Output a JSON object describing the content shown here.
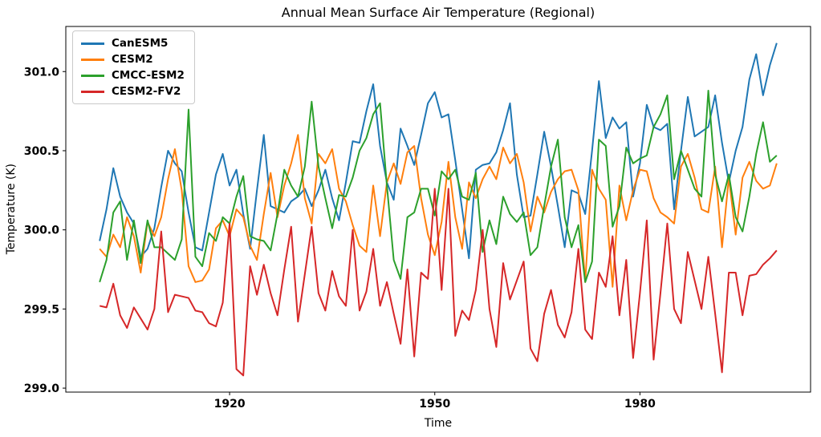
{
  "chart_data": {
    "type": "line",
    "title": "Annual Mean Surface Air Temperature (Regional)",
    "xlabel": "Time",
    "ylabel": "Temperature (K)",
    "xlim": [
      1896.05,
      2004.95
    ],
    "ylim": [
      298.975,
      301.285
    ],
    "xticks": [
      1920,
      1950,
      1980
    ],
    "yticks": [
      299.0,
      299.5,
      300.0,
      300.5,
      301.0
    ],
    "grid": false,
    "legend_position": "upper-left",
    "line_width": 2,
    "x": [
      1901,
      1902,
      1903,
      1904,
      1905,
      1906,
      1907,
      1908,
      1909,
      1910,
      1911,
      1912,
      1913,
      1914,
      1915,
      1916,
      1917,
      1918,
      1919,
      1920,
      1921,
      1922,
      1923,
      1924,
      1925,
      1926,
      1927,
      1928,
      1929,
      1930,
      1931,
      1932,
      1933,
      1934,
      1935,
      1936,
      1937,
      1938,
      1939,
      1940,
      1941,
      1942,
      1943,
      1944,
      1945,
      1946,
      1947,
      1948,
      1949,
      1950,
      1951,
      1952,
      1953,
      1954,
      1955,
      1956,
      1957,
      1958,
      1959,
      1960,
      1961,
      1962,
      1963,
      1964,
      1965,
      1966,
      1967,
      1968,
      1969,
      1970,
      1971,
      1972,
      1973,
      1974,
      1975,
      1976,
      1977,
      1978,
      1979,
      1980,
      1981,
      1982,
      1983,
      1984,
      1985,
      1986,
      1987,
      1988,
      1989,
      1990,
      1991,
      1992,
      1993,
      1994,
      1995,
      1996,
      1997,
      1998,
      1999,
      2000
    ],
    "series": [
      {
        "name": "CanESM5",
        "color": "#1f77b4",
        "values": [
          299.93,
          300.13,
          300.39,
          300.21,
          300.11,
          300.04,
          299.83,
          299.88,
          300.01,
          300.27,
          300.5,
          300.42,
          300.37,
          300.11,
          299.89,
          299.87,
          300.11,
          300.35,
          300.48,
          300.28,
          300.38,
          300.1,
          299.88,
          300.25,
          300.6,
          300.15,
          300.13,
          300.11,
          300.18,
          300.21,
          300.26,
          300.15,
          300.25,
          300.38,
          300.2,
          300.06,
          300.3,
          300.56,
          300.55,
          300.75,
          300.92,
          300.53,
          300.3,
          300.19,
          300.64,
          300.53,
          300.41,
          300.6,
          300.8,
          300.87,
          300.71,
          300.73,
          300.44,
          300.13,
          299.82,
          300.38,
          300.41,
          300.42,
          300.49,
          300.63,
          300.8,
          300.35,
          300.08,
          300.09,
          300.35,
          300.62,
          300.4,
          300.15,
          299.89,
          300.25,
          300.23,
          300.1,
          300.5,
          300.94,
          300.58,
          300.71,
          300.64,
          300.68,
          300.21,
          300.42,
          300.79,
          300.65,
          300.63,
          300.67,
          300.13,
          300.5,
          300.84,
          300.59,
          300.62,
          300.65,
          300.85,
          300.55,
          300.3,
          300.5,
          300.65,
          300.95,
          301.11,
          300.85,
          301.04,
          301.18
        ]
      },
      {
        "name": "CESM2",
        "color": "#ff7f0e",
        "values": [
          299.88,
          299.83,
          299.97,
          299.89,
          300.08,
          299.96,
          299.73,
          300.05,
          299.96,
          300.08,
          300.32,
          300.51,
          300.25,
          299.77,
          299.67,
          299.68,
          299.75,
          300.01,
          300.06,
          299.96,
          300.13,
          300.08,
          299.9,
          299.81,
          300.1,
          300.36,
          300.08,
          300.28,
          300.42,
          300.6,
          300.2,
          300.04,
          300.48,
          300.42,
          300.51,
          300.26,
          300.18,
          300.03,
          299.9,
          299.86,
          300.28,
          299.96,
          300.3,
          300.42,
          300.29,
          300.49,
          300.53,
          300.2,
          299.97,
          299.84,
          300.05,
          300.43,
          300.08,
          299.88,
          300.3,
          300.2,
          300.32,
          300.4,
          300.32,
          300.52,
          300.42,
          300.48,
          300.3,
          299.99,
          300.21,
          300.11,
          300.24,
          300.32,
          300.37,
          300.38,
          300.25,
          299.67,
          300.38,
          300.26,
          300.19,
          299.64,
          300.28,
          300.06,
          300.25,
          300.38,
          300.37,
          300.2,
          300.11,
          300.08,
          300.04,
          300.4,
          300.48,
          300.33,
          300.13,
          300.11,
          300.4,
          299.89,
          300.33,
          299.97,
          300.33,
          300.43,
          300.31,
          300.26,
          300.28,
          300.42
        ]
      },
      {
        "name": "CMCC-ESM2",
        "color": "#2ca02c",
        "values": [
          299.67,
          299.81,
          300.11,
          300.18,
          299.81,
          300.06,
          299.79,
          300.06,
          299.89,
          299.89,
          299.85,
          299.81,
          299.94,
          300.76,
          299.83,
          299.77,
          299.98,
          299.93,
          300.08,
          300.04,
          300.21,
          300.34,
          299.96,
          299.94,
          299.93,
          299.87,
          300.1,
          300.38,
          300.28,
          300.21,
          300.4,
          300.81,
          300.4,
          300.2,
          300.01,
          300.22,
          300.21,
          300.33,
          300.5,
          300.58,
          300.73,
          300.8,
          300.28,
          299.81,
          299.69,
          300.08,
          300.11,
          300.26,
          300.26,
          300.09,
          300.37,
          300.32,
          300.38,
          300.21,
          300.19,
          300.36,
          299.86,
          300.06,
          299.91,
          300.21,
          300.1,
          300.05,
          300.11,
          299.84,
          299.89,
          300.15,
          300.4,
          300.57,
          300.08,
          299.89,
          300.03,
          299.67,
          299.8,
          300.57,
          300.53,
          300.02,
          300.15,
          300.52,
          300.42,
          300.45,
          300.47,
          300.65,
          300.73,
          300.85,
          300.32,
          300.5,
          300.38,
          300.26,
          300.21,
          300.88,
          300.35,
          300.18,
          300.35,
          300.08,
          299.99,
          300.21,
          300.48,
          300.68,
          300.43,
          300.47
        ]
      },
      {
        "name": "CESM2-FV2",
        "color": "#d62728",
        "values": [
          299.52,
          299.51,
          299.66,
          299.46,
          299.38,
          299.51,
          299.44,
          299.37,
          299.5,
          299.99,
          299.48,
          299.59,
          299.58,
          299.57,
          299.49,
          299.48,
          299.41,
          299.39,
          299.54,
          300.04,
          299.12,
          299.08,
          299.77,
          299.59,
          299.78,
          299.6,
          299.46,
          299.75,
          300.02,
          299.42,
          299.72,
          300.02,
          299.6,
          299.49,
          299.74,
          299.58,
          299.52,
          300.0,
          299.49,
          299.61,
          299.88,
          299.52,
          299.67,
          299.47,
          299.28,
          299.75,
          299.2,
          299.73,
          299.69,
          300.26,
          299.62,
          300.26,
          299.33,
          299.49,
          299.43,
          299.62,
          300.0,
          299.5,
          299.26,
          299.79,
          299.56,
          299.68,
          299.8,
          299.25,
          299.17,
          299.47,
          299.62,
          299.4,
          299.32,
          299.48,
          299.88,
          299.37,
          299.31,
          299.73,
          299.64,
          299.96,
          299.46,
          299.81,
          299.19,
          299.6,
          300.06,
          299.18,
          299.6,
          300.04,
          299.5,
          299.41,
          299.86,
          299.68,
          299.5,
          299.83,
          299.47,
          299.1,
          299.73,
          299.73,
          299.46,
          299.71,
          299.72,
          299.78,
          299.82,
          299.87
        ]
      }
    ]
  }
}
